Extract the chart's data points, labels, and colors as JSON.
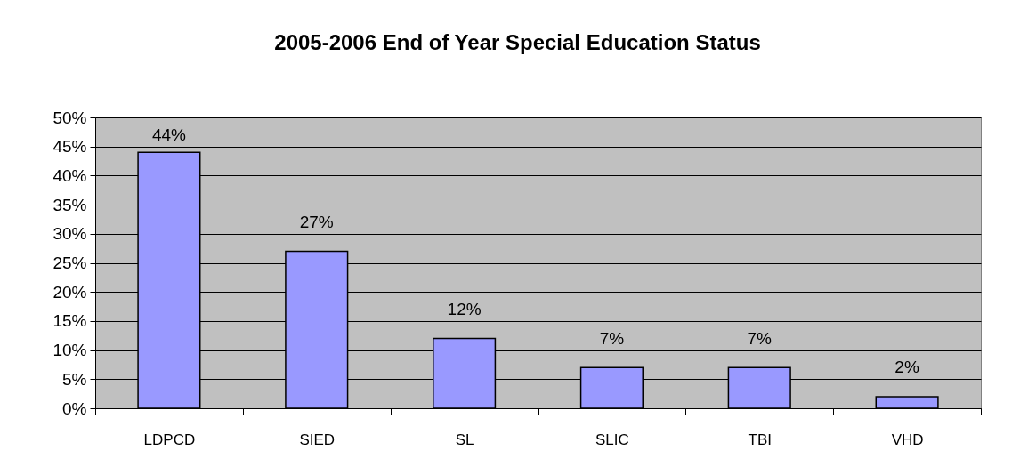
{
  "chart_data": {
    "type": "bar",
    "title": "2005-2006 End of Year Special Education Status",
    "categories": [
      "LDPCD",
      "SIED",
      "SL",
      "SLIC",
      "TBI",
      "VHD"
    ],
    "values": [
      44,
      27,
      12,
      7,
      7,
      2
    ],
    "value_labels": [
      "44%",
      "27%",
      "12%",
      "7%",
      "7%",
      "2%"
    ],
    "color": "#9999ff",
    "ylim": [
      0,
      50
    ],
    "yticks": [
      {
        "value": 0,
        "label": "0%"
      },
      {
        "value": 5,
        "label": "5%"
      },
      {
        "value": 10,
        "label": "10%"
      },
      {
        "value": 15,
        "label": "15%"
      },
      {
        "value": 20,
        "label": "20%"
      },
      {
        "value": 25,
        "label": "25%"
      },
      {
        "value": 30,
        "label": "30%"
      },
      {
        "value": 35,
        "label": "35%"
      },
      {
        "value": 40,
        "label": "40%"
      },
      {
        "value": 45,
        "label": "45%"
      },
      {
        "value": 50,
        "label": "50%"
      }
    ],
    "grid": "y"
  }
}
